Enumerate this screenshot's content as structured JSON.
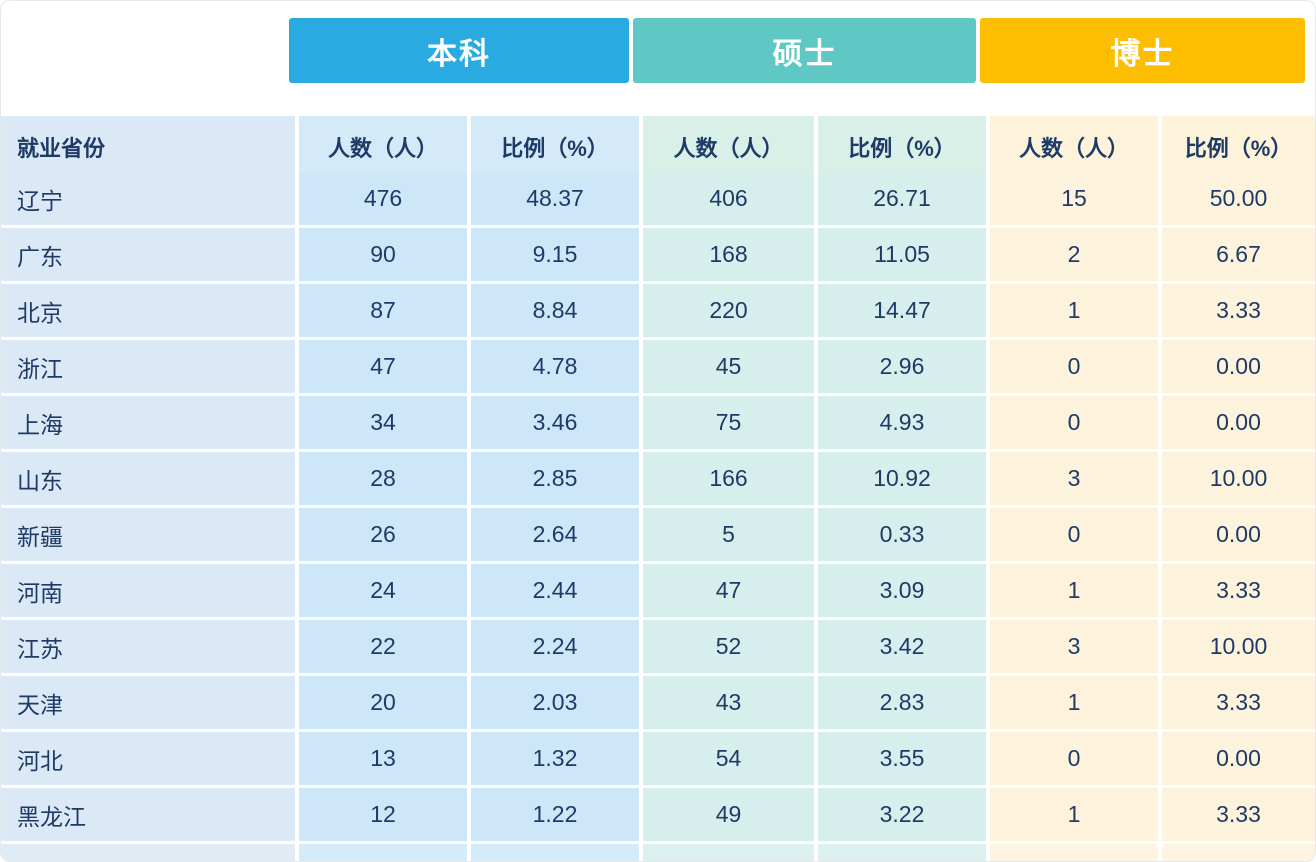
{
  "chart_data": {
    "type": "table",
    "group_headers": [
      {
        "label": "本科",
        "color": "#29abe2"
      },
      {
        "label": "硕士",
        "color": "#5fc8c4"
      },
      {
        "label": "博士",
        "color": "#fdbe01"
      }
    ],
    "column_headers": {
      "province": "就业省份",
      "count": "人数（人）",
      "ratio": "比例（%）"
    },
    "rows": [
      {
        "province": "辽宁",
        "bk_count": "476",
        "bk_ratio": "48.37",
        "ss_count": "406",
        "ss_ratio": "26.71",
        "bs_count": "15",
        "bs_ratio": "50.00"
      },
      {
        "province": "广东",
        "bk_count": "90",
        "bk_ratio": "9.15",
        "ss_count": "168",
        "ss_ratio": "11.05",
        "bs_count": "2",
        "bs_ratio": "6.67"
      },
      {
        "province": "北京",
        "bk_count": "87",
        "bk_ratio": "8.84",
        "ss_count": "220",
        "ss_ratio": "14.47",
        "bs_count": "1",
        "bs_ratio": "3.33"
      },
      {
        "province": "浙江",
        "bk_count": "47",
        "bk_ratio": "4.78",
        "ss_count": "45",
        "ss_ratio": "2.96",
        "bs_count": "0",
        "bs_ratio": "0.00"
      },
      {
        "province": "上海",
        "bk_count": "34",
        "bk_ratio": "3.46",
        "ss_count": "75",
        "ss_ratio": "4.93",
        "bs_count": "0",
        "bs_ratio": "0.00"
      },
      {
        "province": "山东",
        "bk_count": "28",
        "bk_ratio": "2.85",
        "ss_count": "166",
        "ss_ratio": "10.92",
        "bs_count": "3",
        "bs_ratio": "10.00"
      },
      {
        "province": "新疆",
        "bk_count": "26",
        "bk_ratio": "2.64",
        "ss_count": "5",
        "ss_ratio": "0.33",
        "bs_count": "0",
        "bs_ratio": "0.00"
      },
      {
        "province": "河南",
        "bk_count": "24",
        "bk_ratio": "2.44",
        "ss_count": "47",
        "ss_ratio": "3.09",
        "bs_count": "1",
        "bs_ratio": "3.33"
      },
      {
        "province": "江苏",
        "bk_count": "22",
        "bk_ratio": "2.24",
        "ss_count": "52",
        "ss_ratio": "3.42",
        "bs_count": "3",
        "bs_ratio": "10.00"
      },
      {
        "province": "天津",
        "bk_count": "20",
        "bk_ratio": "2.03",
        "ss_count": "43",
        "ss_ratio": "2.83",
        "bs_count": "1",
        "bs_ratio": "3.33"
      },
      {
        "province": "河北",
        "bk_count": "13",
        "bk_ratio": "1.32",
        "ss_count": "54",
        "ss_ratio": "3.55",
        "bs_count": "0",
        "bs_ratio": "0.00"
      },
      {
        "province": "黑龙江",
        "bk_count": "12",
        "bk_ratio": "1.22",
        "ss_count": "49",
        "ss_ratio": "3.22",
        "bs_count": "1",
        "bs_ratio": "3.33"
      }
    ]
  },
  "palette": {
    "bachelor_bar": "#29abe2",
    "master_bar": "#5fc8c4",
    "doctor_bar": "#fdbe01",
    "province_cell_bg": "#dbe8f5",
    "bachelor_cell_bg": "#cde7f8",
    "master_cell_bg": "#d6efec",
    "doctor_cell_bg": "#fdf3dd",
    "text_color": "#1e3a67"
  }
}
